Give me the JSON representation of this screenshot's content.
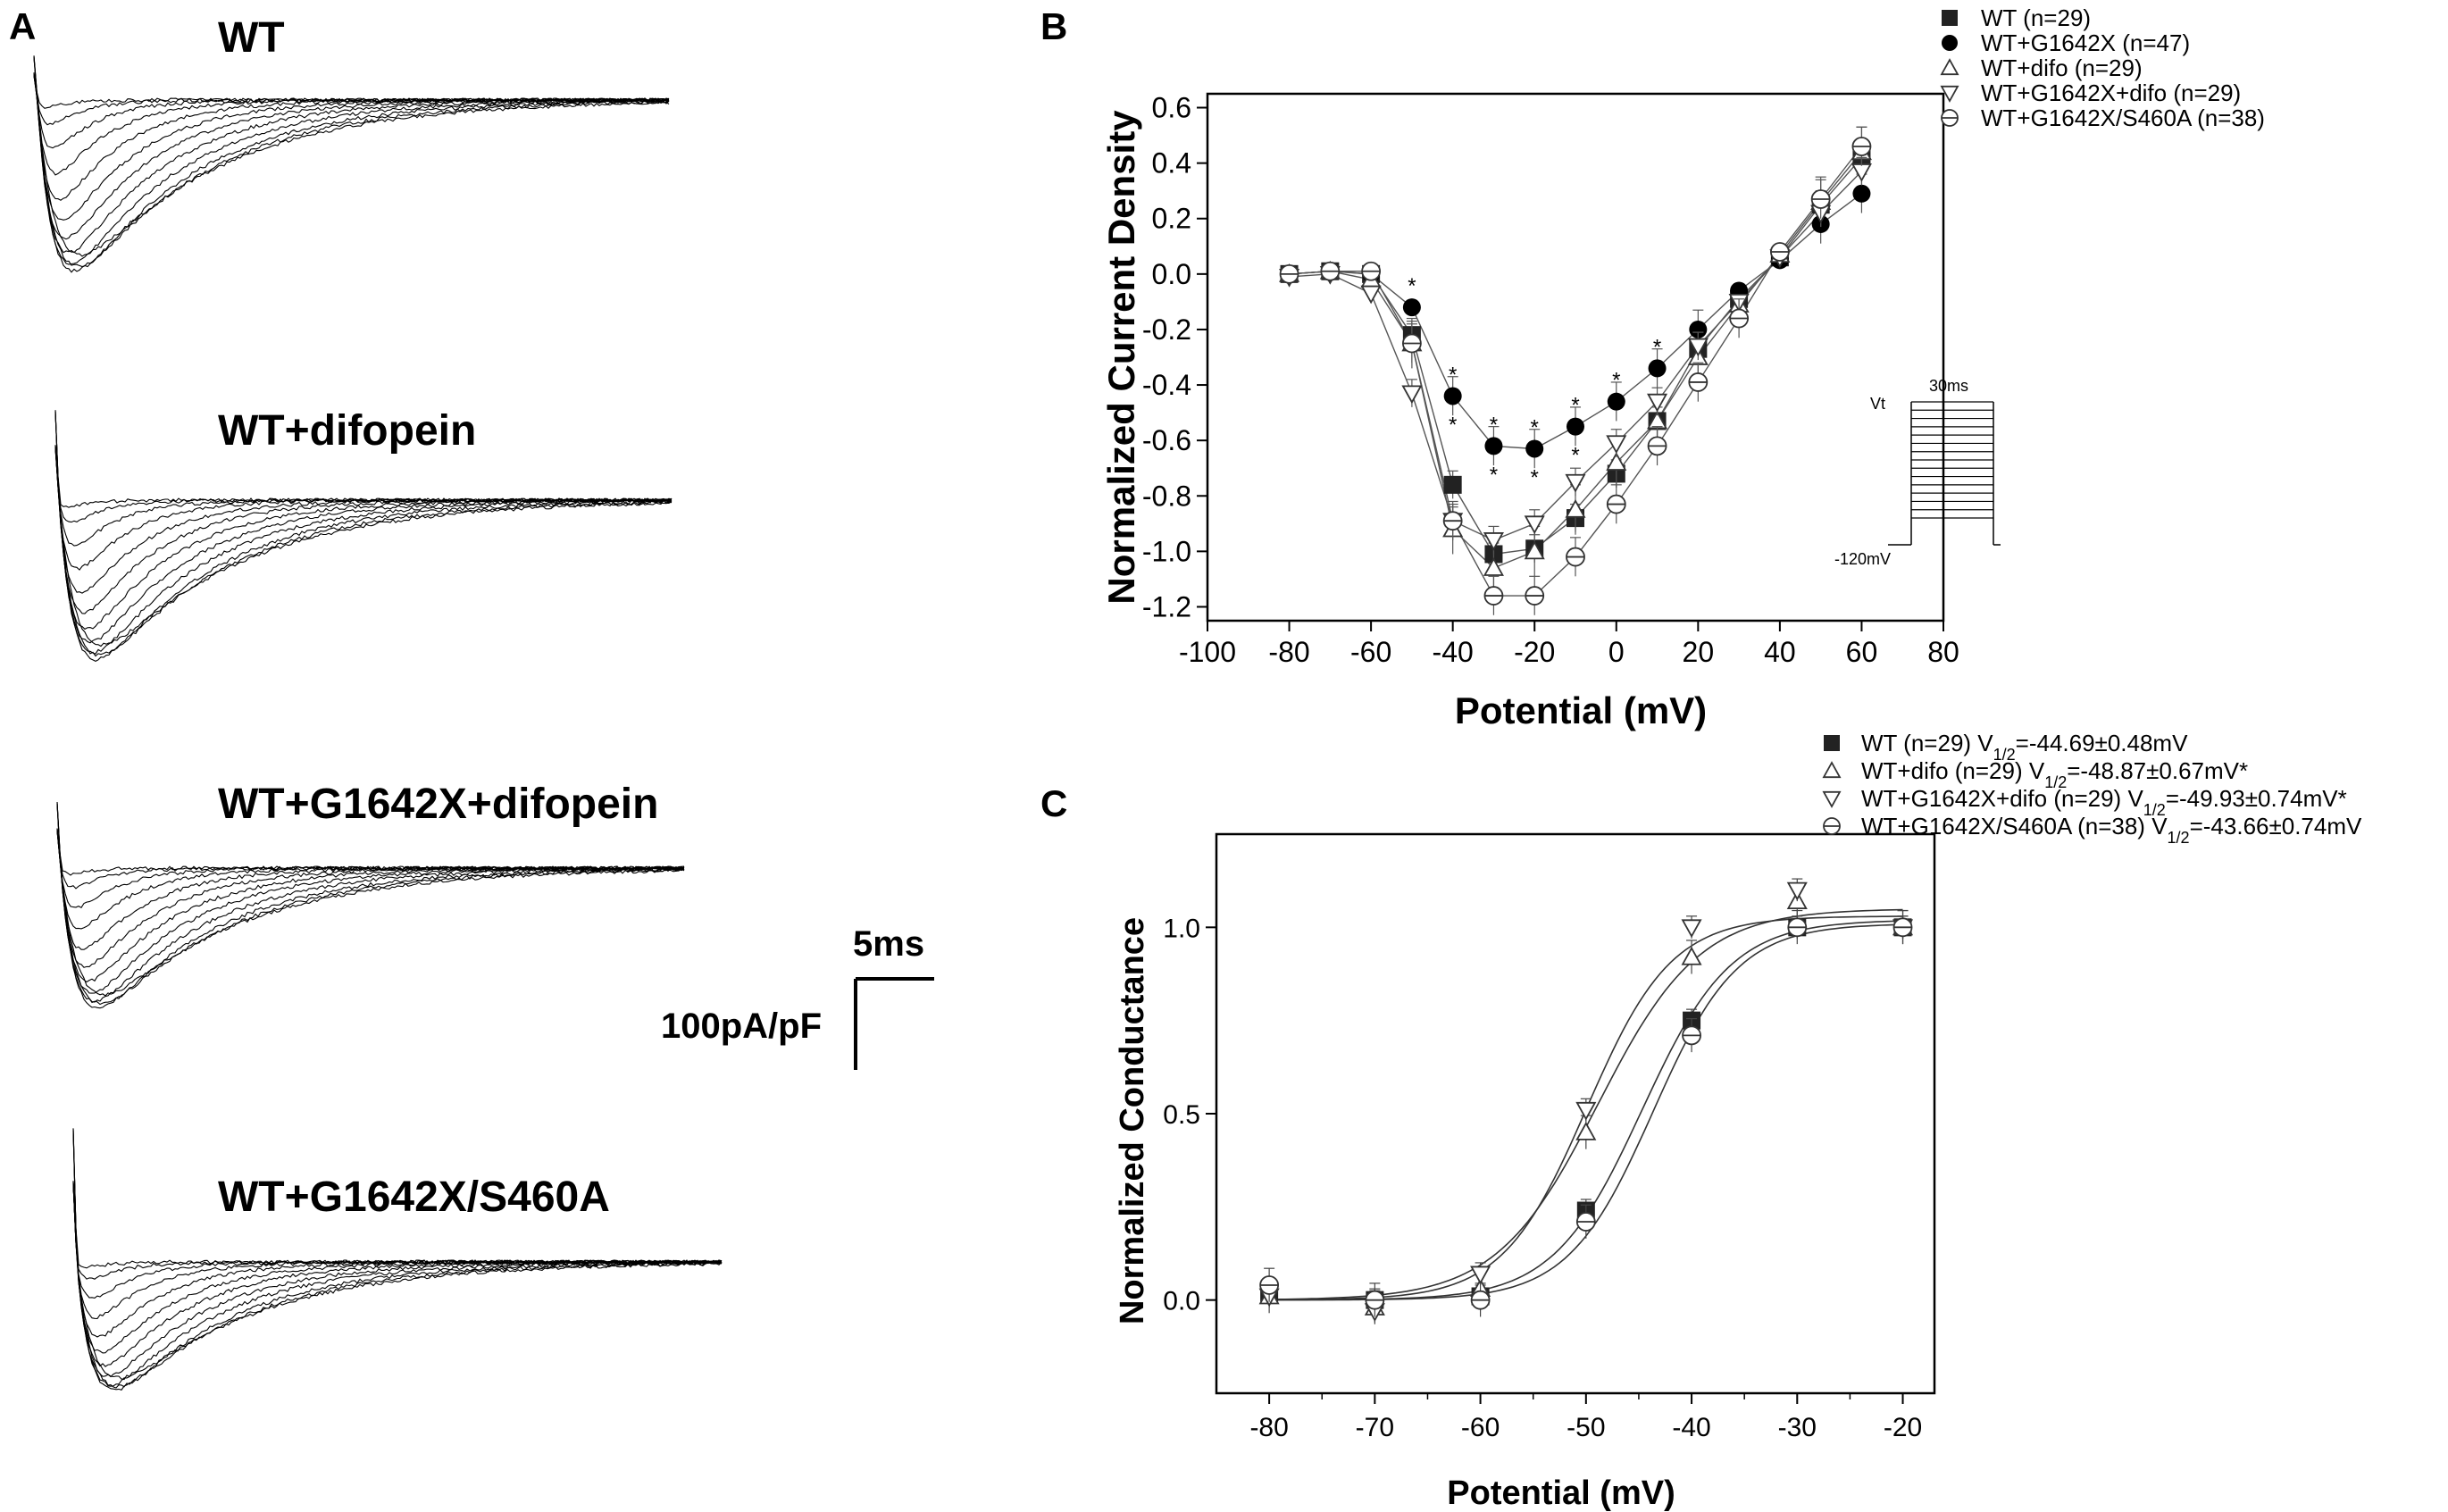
{
  "panel_a": {
    "label": "A",
    "trace_titles": [
      "WT",
      "WT+difopein",
      "WT+G1642X+difopein",
      "WT+G1642X/S460A"
    ],
    "scale_time": "5ms",
    "scale_current": "100pA/pF"
  },
  "chart_data": [
    {
      "type": "line",
      "panel": "B",
      "xlabel": "Potential (mV)",
      "ylabel": "Normalized Current Density",
      "xlim": [
        -100,
        80
      ],
      "ylim": [
        -1.25,
        0.65
      ],
      "xticks": [
        "-100",
        "-80",
        "-60",
        "-40",
        "-20",
        "0",
        "20",
        "40",
        "60",
        "80"
      ],
      "yticks": [
        "0.6",
        "0.4",
        "0.2",
        "0.0",
        "-0.2",
        "-0.4",
        "-0.6",
        "-0.8",
        "-1.0",
        "-1.2"
      ],
      "x": [
        -80,
        -70,
        -60,
        -50,
        -40,
        -30,
        -20,
        -10,
        0,
        10,
        20,
        30,
        40,
        50,
        60
      ],
      "series": [
        {
          "name": "WT (n=29)",
          "marker": "square",
          "values": [
            0,
            0.01,
            0,
            -0.22,
            -0.76,
            -1.01,
            -0.99,
            -0.88,
            -0.72,
            -0.53,
            -0.27,
            -0.09,
            0.06,
            0.25,
            0.42
          ]
        },
        {
          "name": "WT+G1642X (n=47)",
          "marker": "circle",
          "values": [
            0,
            0.01,
            0,
            -0.12,
            -0.44,
            -0.62,
            -0.63,
            -0.55,
            -0.46,
            -0.34,
            -0.2,
            -0.06,
            0.05,
            0.18,
            0.29
          ]
        },
        {
          "name": "WT+difo (n=29)",
          "marker": "triangle-up",
          "values": [
            0,
            0.01,
            -0.02,
            -0.25,
            -0.92,
            -1.06,
            -1.0,
            -0.85,
            -0.68,
            -0.53,
            -0.3,
            -0.11,
            0.07,
            0.26,
            0.44
          ]
        },
        {
          "name": "WT+G1642X+difo (n=29)",
          "marker": "triangle-down",
          "values": [
            -0.01,
            0.0,
            -0.07,
            -0.43,
            -0.89,
            -0.96,
            -0.9,
            -0.75,
            -0.61,
            -0.46,
            -0.26,
            -0.1,
            0.06,
            0.22,
            0.37
          ]
        },
        {
          "name": "WT+G1642X/S460A (n=38)",
          "marker": "circle-bar",
          "values": [
            0,
            0.01,
            0.01,
            -0.25,
            -0.89,
            -1.16,
            -1.16,
            -1.02,
            -0.83,
            -0.62,
            -0.39,
            -0.16,
            0.08,
            0.27,
            0.46
          ]
        }
      ],
      "stars": [
        -50,
        -40,
        -30,
        -20,
        -10,
        0,
        10
      ],
      "inset": {
        "top_label": "Vt",
        "time_label": "30ms",
        "bottom_label": "-120mV"
      }
    },
    {
      "type": "scatter",
      "panel": "C",
      "xlabel": "Potential (mV)",
      "ylabel": "Normalized Conductance",
      "xlim": [
        -85,
        -17
      ],
      "ylim": [
        -0.25,
        1.25
      ],
      "xticks": [
        "-80",
        "-70",
        "-60",
        "-50",
        "-40",
        "-30",
        "-20"
      ],
      "yticks": [
        "0.0",
        "0.5",
        "1.0"
      ],
      "x": [
        -80,
        -70,
        -60,
        -50,
        -40,
        -30,
        -20
      ],
      "series": [
        {
          "name": "WT (n=29)",
          "v_half": "=-44.69±0.48mV",
          "marker": "square",
          "values": [
            0.02,
            0.0,
            0.01,
            0.24,
            0.75,
            1.0,
            1.0
          ],
          "fit": {
            "vh": -44.69,
            "k": 4.2,
            "top": 1.02
          }
        },
        {
          "name": "WT+difo (n=29)",
          "v_half": "=-48.87±0.67mV*",
          "marker": "triangle-up",
          "values": [
            0.01,
            -0.02,
            0.03,
            0.45,
            0.92,
            1.07,
            1.0
          ],
          "fit": {
            "vh": -48.87,
            "k": 4.8,
            "top": 1.05
          }
        },
        {
          "name": "WT+G1642X+difo (n=29)",
          "v_half": "=-49.93±0.74mV*",
          "marker": "triangle-down",
          "values": [
            0.01,
            -0.03,
            0.07,
            0.51,
            1.0,
            1.1,
            1.0
          ],
          "fit": {
            "vh": -49.93,
            "k": 4.0,
            "top": 1.03
          }
        },
        {
          "name": "WT+G1642X/S460A (n=38)",
          "v_half": "=-43.66±0.74mV",
          "marker": "circle-bar",
          "values": [
            0.04,
            0.0,
            0.0,
            0.21,
            0.71,
            1.0,
            1.0
          ],
          "fit": {
            "vh": -43.66,
            "k": 4.0,
            "top": 1.01
          }
        }
      ]
    }
  ]
}
